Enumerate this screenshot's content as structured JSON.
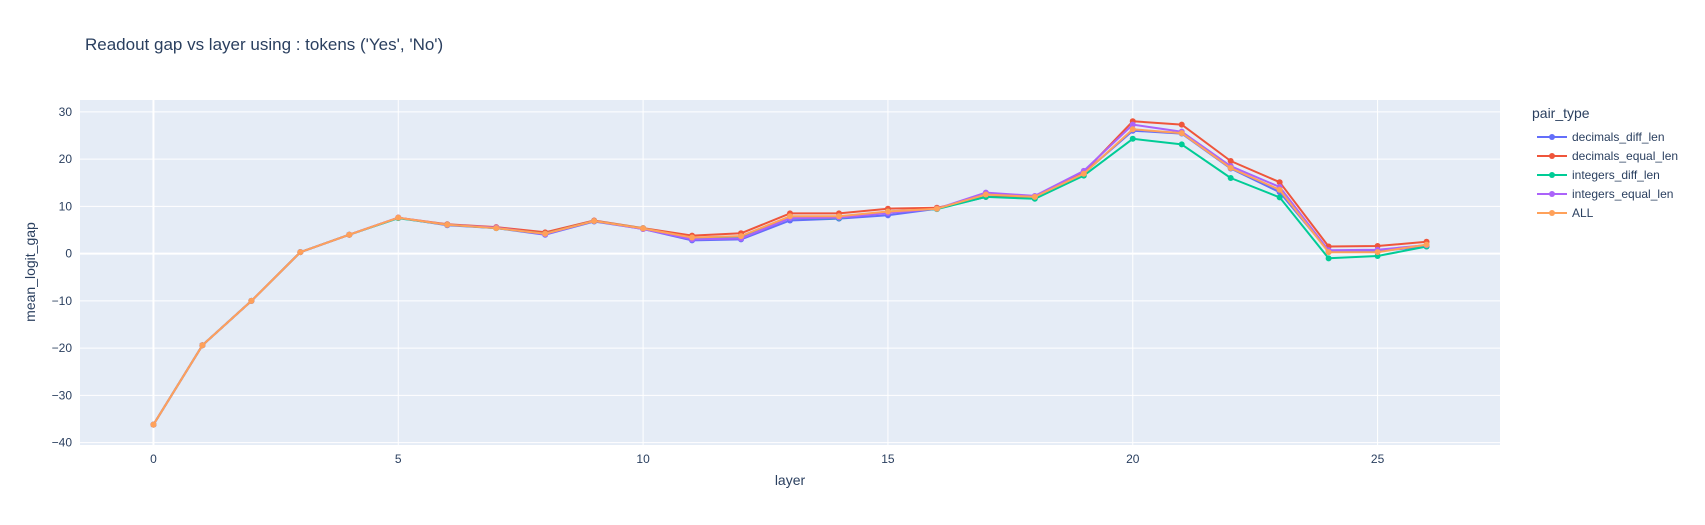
{
  "chart_data": {
    "type": "line",
    "title": "Readout gap vs layer using :      tokens ('Yes', 'No')",
    "xlabel": "layer",
    "ylabel": "mean_logit_gap",
    "x": [
      0,
      1,
      2,
      3,
      4,
      5,
      6,
      7,
      8,
      9,
      10,
      11,
      12,
      13,
      14,
      15,
      16,
      17,
      18,
      19,
      20,
      21,
      22,
      23,
      24,
      25,
      26
    ],
    "xlim": [
      -1.5,
      27.5
    ],
    "ylim": [
      -40.5,
      32.5
    ],
    "xticks": [
      0,
      5,
      10,
      15,
      20,
      25
    ],
    "yticks": [
      -40,
      -30,
      -20,
      -10,
      0,
      10,
      20,
      30
    ],
    "grid": true,
    "legend_title": "pair_type",
    "legend_position": "right",
    "background": "#e5ecf6",
    "series": [
      {
        "name": "decimals_diff_len",
        "color": "#636efa",
        "values": [
          -36.2,
          -19.4,
          -10.0,
          0.3,
          4.0,
          7.6,
          6.0,
          5.4,
          4.0,
          6.8,
          5.2,
          2.8,
          3.0,
          7.0,
          7.4,
          8.1,
          9.5,
          12.0,
          12.0,
          17.0,
          26.0,
          25.4,
          18.0,
          13.0,
          0.5,
          0.5,
          1.5
        ]
      },
      {
        "name": "decimals_equal_len",
        "color": "#ef553b",
        "values": [
          -36.2,
          -19.4,
          -10.0,
          0.3,
          4.0,
          7.6,
          6.2,
          5.6,
          4.5,
          7.0,
          5.4,
          3.8,
          4.3,
          8.5,
          8.5,
          9.5,
          9.7,
          12.0,
          12.1,
          17.2,
          28.0,
          27.3,
          19.6,
          15.1,
          1.5,
          1.6,
          2.5
        ]
      },
      {
        "name": "integers_diff_len",
        "color": "#00cc96",
        "values": [
          -36.2,
          -19.4,
          -10.0,
          0.3,
          4.0,
          7.5,
          6.1,
          5.4,
          4.2,
          6.9,
          5.3,
          3.3,
          3.6,
          7.5,
          7.5,
          8.9,
          9.4,
          12.0,
          11.6,
          16.5,
          24.3,
          23.1,
          16.0,
          11.9,
          -1.0,
          -0.5,
          1.5
        ]
      },
      {
        "name": "integers_equal_len",
        "color": "#ab63fa",
        "values": [
          -36.2,
          -19.4,
          -10.0,
          0.3,
          4.0,
          7.6,
          6.1,
          5.5,
          4.1,
          6.9,
          5.2,
          3.0,
          3.2,
          7.5,
          7.6,
          8.6,
          9.5,
          12.9,
          12.2,
          17.5,
          27.3,
          25.8,
          18.5,
          14.1,
          0.7,
          0.8,
          1.8
        ]
      },
      {
        "name": "ALL",
        "color": "#ffa15a",
        "values": [
          -36.2,
          -19.4,
          -10.0,
          0.3,
          4.0,
          7.6,
          6.1,
          5.4,
          4.2,
          6.9,
          5.3,
          3.4,
          3.7,
          7.9,
          7.9,
          8.9,
          9.5,
          12.5,
          12.0,
          16.9,
          26.3,
          25.5,
          18.1,
          13.5,
          0.3,
          0.3,
          1.9
        ]
      }
    ]
  }
}
